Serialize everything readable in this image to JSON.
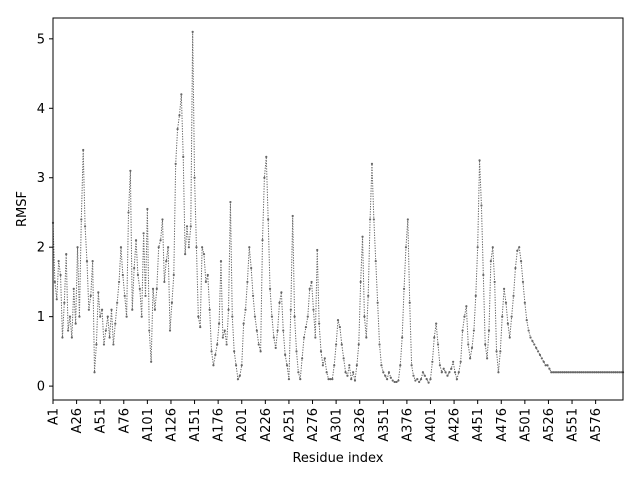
{
  "chart_data": {
    "type": "line",
    "title": "",
    "xlabel": "Residue index",
    "ylabel": "RMSF",
    "xlim": [
      1,
      605
    ],
    "ylim": [
      -0.2,
      5.3
    ],
    "yticks": [
      0,
      1,
      2,
      3,
      4,
      5
    ],
    "xticks": [
      {
        "pos": 1,
        "label": "A1"
      },
      {
        "pos": 26,
        "label": "A26"
      },
      {
        "pos": 51,
        "label": "A51"
      },
      {
        "pos": 76,
        "label": "A76"
      },
      {
        "pos": 101,
        "label": "A101"
      },
      {
        "pos": 126,
        "label": "A126"
      },
      {
        "pos": 151,
        "label": "A151"
      },
      {
        "pos": 176,
        "label": "A176"
      },
      {
        "pos": 201,
        "label": "A201"
      },
      {
        "pos": 226,
        "label": "A226"
      },
      {
        "pos": 251,
        "label": "A251"
      },
      {
        "pos": 276,
        "label": "A276"
      },
      {
        "pos": 301,
        "label": "A301"
      },
      {
        "pos": 326,
        "label": "A326"
      },
      {
        "pos": 351,
        "label": "A351"
      },
      {
        "pos": 376,
        "label": "A376"
      },
      {
        "pos": 401,
        "label": "A401"
      },
      {
        "pos": 426,
        "label": "A426"
      },
      {
        "pos": 451,
        "label": "A451"
      },
      {
        "pos": 476,
        "label": "A476"
      },
      {
        "pos": 501,
        "label": "A501"
      },
      {
        "pos": 526,
        "label": "A526"
      },
      {
        "pos": 551,
        "label": "A551"
      },
      {
        "pos": 576,
        "label": "A576"
      }
    ],
    "grid": false,
    "series": [
      {
        "color": "#666666",
        "line_style": "dotted",
        "marker": "dot",
        "points": [
          [
            1,
            2.35
          ],
          [
            3,
            1.5
          ],
          [
            5,
            1.25
          ],
          [
            7,
            1.8
          ],
          [
            9,
            1.6
          ],
          [
            11,
            0.7
          ],
          [
            13,
            1.2
          ],
          [
            15,
            1.9
          ],
          [
            17,
            0.8
          ],
          [
            19,
            1.0
          ],
          [
            21,
            0.7
          ],
          [
            23,
            1.4
          ],
          [
            25,
            0.9
          ],
          [
            27,
            2.0
          ],
          [
            29,
            1.0
          ],
          [
            31,
            2.4
          ],
          [
            33,
            3.4
          ],
          [
            35,
            2.3
          ],
          [
            37,
            1.8
          ],
          [
            39,
            1.1
          ],
          [
            41,
            1.3
          ],
          [
            43,
            1.8
          ],
          [
            45,
            0.2
          ],
          [
            47,
            0.6
          ],
          [
            49,
            1.35
          ],
          [
            51,
            1.0
          ],
          [
            53,
            1.1
          ],
          [
            55,
            0.6
          ],
          [
            57,
            0.8
          ],
          [
            59,
            1.0
          ],
          [
            61,
            0.7
          ],
          [
            63,
            1.1
          ],
          [
            65,
            0.6
          ],
          [
            67,
            0.9
          ],
          [
            69,
            1.2
          ],
          [
            71,
            1.5
          ],
          [
            73,
            2.0
          ],
          [
            75,
            1.6
          ],
          [
            77,
            1.3
          ],
          [
            79,
            1.0
          ],
          [
            81,
            2.5
          ],
          [
            83,
            3.1
          ],
          [
            85,
            1.1
          ],
          [
            87,
            1.7
          ],
          [
            89,
            2.1
          ],
          [
            91,
            1.6
          ],
          [
            93,
            1.4
          ],
          [
            95,
            1.0
          ],
          [
            97,
            2.2
          ],
          [
            99,
            1.3
          ],
          [
            101,
            2.55
          ],
          [
            103,
            0.8
          ],
          [
            105,
            0.35
          ],
          [
            107,
            1.4
          ],
          [
            109,
            1.1
          ],
          [
            111,
            1.4
          ],
          [
            113,
            2.0
          ],
          [
            115,
            2.1
          ],
          [
            117,
            2.4
          ],
          [
            119,
            1.5
          ],
          [
            121,
            1.8
          ],
          [
            123,
            2.0
          ],
          [
            125,
            0.8
          ],
          [
            127,
            1.2
          ],
          [
            129,
            1.6
          ],
          [
            131,
            3.2
          ],
          [
            133,
            3.7
          ],
          [
            135,
            3.9
          ],
          [
            137,
            4.2
          ],
          [
            139,
            3.3
          ],
          [
            141,
            1.9
          ],
          [
            143,
            2.3
          ],
          [
            145,
            2.0
          ],
          [
            147,
            2.3
          ],
          [
            149,
            5.1
          ],
          [
            151,
            3.0
          ],
          [
            153,
            2.0
          ],
          [
            155,
            1.0
          ],
          [
            157,
            0.85
          ],
          [
            159,
            2.0
          ],
          [
            161,
            1.9
          ],
          [
            163,
            1.5
          ],
          [
            165,
            1.6
          ],
          [
            167,
            1.1
          ],
          [
            169,
            0.5
          ],
          [
            171,
            0.3
          ],
          [
            173,
            0.45
          ],
          [
            175,
            0.6
          ],
          [
            177,
            0.9
          ],
          [
            179,
            1.8
          ],
          [
            181,
            0.7
          ],
          [
            183,
            0.8
          ],
          [
            185,
            0.6
          ],
          [
            187,
            1.1
          ],
          [
            189,
            2.65
          ],
          [
            191,
            1.0
          ],
          [
            193,
            0.5
          ],
          [
            195,
            0.3
          ],
          [
            197,
            0.1
          ],
          [
            199,
            0.15
          ],
          [
            201,
            0.3
          ],
          [
            203,
            0.9
          ],
          [
            205,
            1.1
          ],
          [
            207,
            1.5
          ],
          [
            209,
            2.0
          ],
          [
            211,
            1.7
          ],
          [
            213,
            1.3
          ],
          [
            215,
            1.0
          ],
          [
            217,
            0.8
          ],
          [
            219,
            0.6
          ],
          [
            221,
            0.5
          ],
          [
            223,
            2.1
          ],
          [
            225,
            3.0
          ],
          [
            227,
            3.3
          ],
          [
            229,
            2.4
          ],
          [
            231,
            1.4
          ],
          [
            233,
            1.0
          ],
          [
            235,
            0.7
          ],
          [
            237,
            0.55
          ],
          [
            239,
            0.8
          ],
          [
            241,
            1.2
          ],
          [
            243,
            1.35
          ],
          [
            245,
            0.8
          ],
          [
            247,
            0.45
          ],
          [
            249,
            0.3
          ],
          [
            251,
            0.1
          ],
          [
            253,
            1.1
          ],
          [
            255,
            2.45
          ],
          [
            257,
            1.0
          ],
          [
            259,
            0.5
          ],
          [
            261,
            0.2
          ],
          [
            263,
            0.1
          ],
          [
            265,
            0.4
          ],
          [
            267,
            0.7
          ],
          [
            269,
            0.85
          ],
          [
            271,
            1.0
          ],
          [
            273,
            1.4
          ],
          [
            275,
            1.5
          ],
          [
            277,
            1.1
          ],
          [
            279,
            0.7
          ],
          [
            281,
            1.96
          ],
          [
            283,
            0.9
          ],
          [
            285,
            0.5
          ],
          [
            287,
            0.3
          ],
          [
            289,
            0.4
          ],
          [
            291,
            0.2
          ],
          [
            293,
            0.1
          ],
          [
            295,
            0.1
          ],
          [
            297,
            0.1
          ],
          [
            299,
            0.3
          ],
          [
            301,
            0.6
          ],
          [
            303,
            0.95
          ],
          [
            305,
            0.85
          ],
          [
            307,
            0.6
          ],
          [
            309,
            0.4
          ],
          [
            311,
            0.2
          ],
          [
            313,
            0.15
          ],
          [
            315,
            0.3
          ],
          [
            317,
            0.1
          ],
          [
            319,
            0.2
          ],
          [
            321,
            0.08
          ],
          [
            323,
            0.3
          ],
          [
            325,
            0.6
          ],
          [
            327,
            1.5
          ],
          [
            329,
            2.15
          ],
          [
            331,
            1.0
          ],
          [
            333,
            0.7
          ],
          [
            335,
            1.3
          ],
          [
            337,
            2.4
          ],
          [
            339,
            3.2
          ],
          [
            341,
            2.4
          ],
          [
            343,
            1.8
          ],
          [
            345,
            1.2
          ],
          [
            347,
            0.6
          ],
          [
            349,
            0.3
          ],
          [
            351,
            0.2
          ],
          [
            353,
            0.15
          ],
          [
            355,
            0.1
          ],
          [
            357,
            0.2
          ],
          [
            359,
            0.12
          ],
          [
            361,
            0.08
          ],
          [
            363,
            0.06
          ],
          [
            365,
            0.06
          ],
          [
            367,
            0.08
          ],
          [
            369,
            0.3
          ],
          [
            371,
            0.7
          ],
          [
            373,
            1.4
          ],
          [
            375,
            2.0
          ],
          [
            377,
            2.4
          ],
          [
            379,
            1.2
          ],
          [
            381,
            0.3
          ],
          [
            383,
            0.15
          ],
          [
            385,
            0.08
          ],
          [
            387,
            0.1
          ],
          [
            389,
            0.06
          ],
          [
            391,
            0.1
          ],
          [
            393,
            0.2
          ],
          [
            395,
            0.15
          ],
          [
            397,
            0.1
          ],
          [
            399,
            0.05
          ],
          [
            401,
            0.1
          ],
          [
            403,
            0.35
          ],
          [
            405,
            0.7
          ],
          [
            407,
            0.9
          ],
          [
            409,
            0.6
          ],
          [
            411,
            0.3
          ],
          [
            413,
            0.2
          ],
          [
            415,
            0.25
          ],
          [
            417,
            0.2
          ],
          [
            419,
            0.15
          ],
          [
            421,
            0.2
          ],
          [
            423,
            0.25
          ],
          [
            425,
            0.35
          ],
          [
            427,
            0.2
          ],
          [
            429,
            0.1
          ],
          [
            431,
            0.2
          ],
          [
            433,
            0.35
          ],
          [
            435,
            0.8
          ],
          [
            437,
            1.0
          ],
          [
            439,
            1.15
          ],
          [
            441,
            0.6
          ],
          [
            443,
            0.4
          ],
          [
            445,
            0.55
          ],
          [
            447,
            0.8
          ],
          [
            449,
            1.3
          ],
          [
            451,
            2.0
          ],
          [
            453,
            3.25
          ],
          [
            455,
            2.6
          ],
          [
            457,
            1.6
          ],
          [
            459,
            0.6
          ],
          [
            461,
            0.4
          ],
          [
            463,
            0.8
          ],
          [
            465,
            1.8
          ],
          [
            467,
            2.0
          ],
          [
            469,
            1.5
          ],
          [
            471,
            0.5
          ],
          [
            473,
            0.2
          ],
          [
            475,
            0.5
          ],
          [
            477,
            1.0
          ],
          [
            479,
            1.4
          ],
          [
            481,
            1.2
          ],
          [
            483,
            0.9
          ],
          [
            485,
            0.7
          ],
          [
            487,
            1.0
          ],
          [
            489,
            1.3
          ],
          [
            491,
            1.7
          ],
          [
            493,
            1.95
          ],
          [
            495,
            2.0
          ],
          [
            497,
            1.8
          ],
          [
            499,
            1.5
          ],
          [
            501,
            1.2
          ],
          [
            503,
            0.95
          ],
          [
            505,
            0.8
          ],
          [
            507,
            0.7
          ],
          [
            509,
            0.65
          ],
          [
            511,
            0.6
          ],
          [
            513,
            0.55
          ],
          [
            515,
            0.5
          ],
          [
            517,
            0.45
          ],
          [
            519,
            0.4
          ],
          [
            521,
            0.35
          ],
          [
            523,
            0.3
          ],
          [
            525,
            0.3
          ],
          [
            527,
            0.25
          ],
          [
            529,
            0.2
          ],
          [
            531,
            0.2
          ],
          [
            533,
            0.2
          ],
          [
            535,
            0.2
          ],
          [
            537,
            0.2
          ],
          [
            539,
            0.2
          ],
          [
            541,
            0.2
          ],
          [
            543,
            0.2
          ],
          [
            545,
            0.2
          ],
          [
            547,
            0.2
          ],
          [
            549,
            0.2
          ],
          [
            551,
            0.2
          ],
          [
            553,
            0.2
          ],
          [
            555,
            0.2
          ],
          [
            557,
            0.2
          ],
          [
            559,
            0.2
          ],
          [
            561,
            0.2
          ],
          [
            563,
            0.2
          ],
          [
            565,
            0.2
          ],
          [
            567,
            0.2
          ],
          [
            569,
            0.2
          ],
          [
            571,
            0.2
          ],
          [
            573,
            0.2
          ],
          [
            575,
            0.2
          ],
          [
            577,
            0.2
          ],
          [
            579,
            0.2
          ],
          [
            581,
            0.2
          ],
          [
            583,
            0.2
          ],
          [
            585,
            0.2
          ],
          [
            587,
            0.2
          ],
          [
            589,
            0.2
          ],
          [
            591,
            0.2
          ],
          [
            593,
            0.2
          ],
          [
            595,
            0.2
          ],
          [
            597,
            0.2
          ],
          [
            599,
            0.2
          ],
          [
            601,
            0.2
          ],
          [
            603,
            0.2
          ],
          [
            605,
            0.2
          ]
        ]
      }
    ]
  }
}
